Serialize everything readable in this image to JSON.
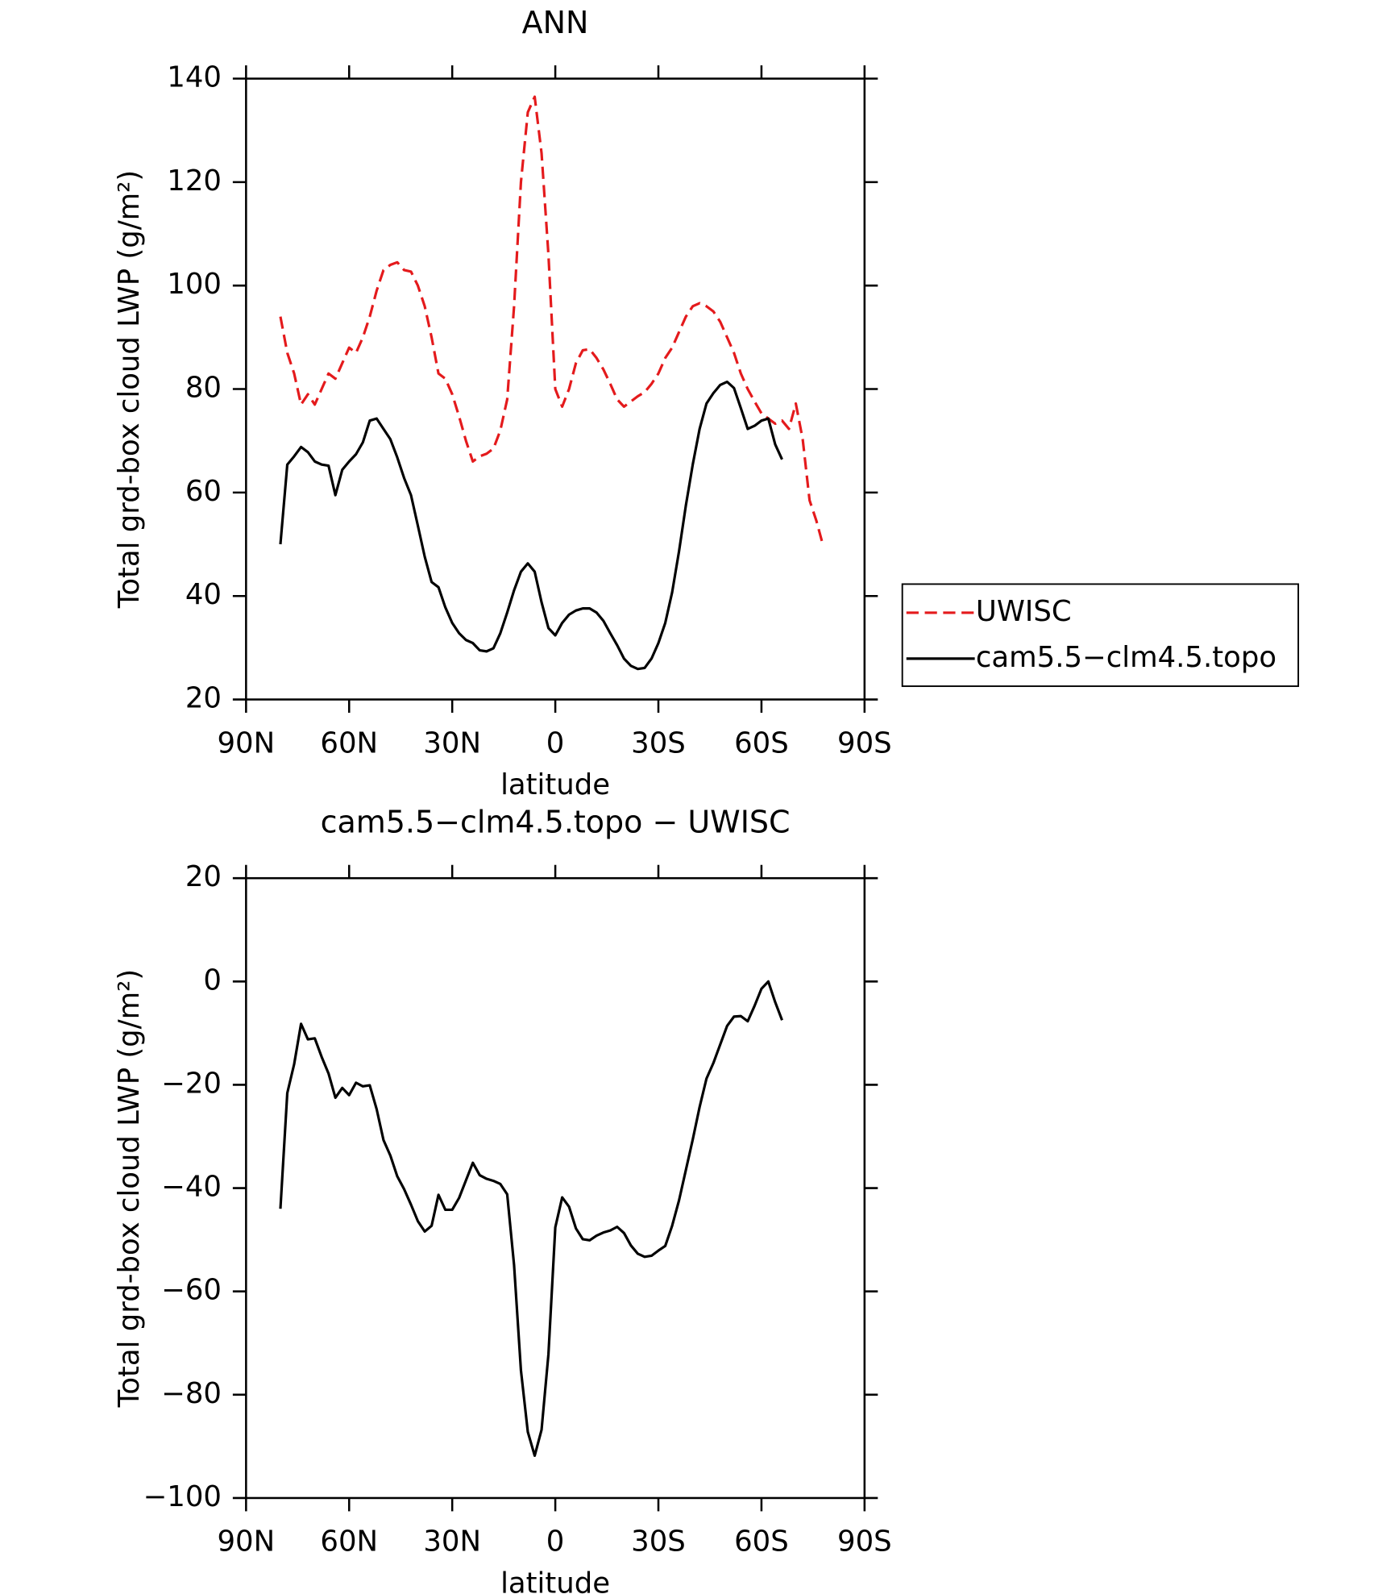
{
  "chart_data": [
    {
      "type": "line",
      "title": "ANN",
      "xlabel": "latitude",
      "ylabel": "Total grd-box cloud LWP (g/m²)",
      "x": [
        80,
        78,
        76,
        74,
        72,
        70,
        68,
        66,
        64,
        62,
        60,
        58,
        56,
        54,
        52,
        50,
        48,
        46,
        44,
        42,
        40,
        38,
        36,
        34,
        32,
        30,
        28,
        26,
        24,
        22,
        20,
        18,
        16,
        14,
        12,
        10,
        8,
        6,
        4,
        2,
        0,
        -2,
        -4,
        -6,
        -8,
        -10,
        -12,
        -14,
        -16,
        -18,
        -20,
        -22,
        -24,
        -26,
        -28,
        -30,
        -32,
        -34,
        -36,
        -38,
        -40,
        -42,
        -44,
        -46,
        -48,
        -50,
        -52,
        -54,
        -56,
        -58,
        -60,
        -62,
        -64,
        -66,
        -68,
        -70,
        -72,
        -74,
        -76,
        -78
      ],
      "series": [
        {
          "name": "UWISC",
          "color": "#e41a1c",
          "dash": true,
          "values": [
            94,
            87,
            83,
            77,
            79,
            77,
            80,
            83,
            82,
            85,
            88,
            87,
            90,
            94,
            99,
            103,
            104,
            104.5,
            103,
            102.7,
            100,
            96,
            90,
            83,
            82,
            79,
            74.7,
            70,
            66,
            67,
            67.5,
            68.5,
            72,
            78,
            96,
            120,
            133.5,
            136.5,
            125.6,
            106,
            80,
            76.6,
            80,
            85,
            87.5,
            87.7,
            86,
            83.8,
            81,
            78,
            76.6,
            77.6,
            78.6,
            79.4,
            81,
            83,
            86,
            88,
            91,
            94,
            96,
            96.6,
            96,
            95,
            93,
            90,
            87,
            83,
            80,
            77.6,
            75.3,
            74.3,
            73.3,
            73.9,
            72.3,
            77.2,
            70.3,
            58.5,
            54.5,
            49.6
          ]
        },
        {
          "name": "cam5.5−clm4.5.topo",
          "color": "#000000",
          "dash": false,
          "values": [
            50,
            65.4,
            67,
            68.8,
            67.8,
            66,
            65.4,
            65.2,
            59.5,
            64.4,
            66,
            67.4,
            69.7,
            73.9,
            74.3,
            72.3,
            70.3,
            66.8,
            62.8,
            59.5,
            53.6,
            47.6,
            42.7,
            41.7,
            37.8,
            34.8,
            32.8,
            31.5,
            30.9,
            29.5,
            29.3,
            29.9,
            32.8,
            36.8,
            41.1,
            44.7,
            46.3,
            44.7,
            38.8,
            33.8,
            32.4,
            34.8,
            36.4,
            37.2,
            37.6,
            37.6,
            36.8,
            35.2,
            32.8,
            30.5,
            27.9,
            26.5,
            25.9,
            26.1,
            27.9,
            30.9,
            34.8,
            40.7,
            48.6,
            57.5,
            65.4,
            72.3,
            77.2,
            79.2,
            80.8,
            81.4,
            80.2,
            76.3,
            72.3,
            72.9,
            73.9,
            74.3,
            69.3,
            66.4,
            null,
            null,
            null,
            null,
            null,
            null
          ]
        }
      ],
      "xlim": [
        90,
        -90
      ],
      "xticks": [
        {
          "value": 90,
          "label": "90N"
        },
        {
          "value": 60,
          "label": "60N"
        },
        {
          "value": 30,
          "label": "30N"
        },
        0,
        {
          "value": -30,
          "label": "30S"
        },
        {
          "value": -60,
          "label": "60S"
        },
        {
          "value": -90,
          "label": "90S"
        }
      ],
      "ylim": [
        20,
        140
      ],
      "yticks": [
        20,
        40,
        60,
        80,
        100,
        120,
        140
      ],
      "legend": "right"
    },
    {
      "type": "line",
      "title": "cam5.5−clm4.5.topo − UWISC",
      "xlabel": "latitude",
      "ylabel": "Total grd-box cloud LWP (g/m²)",
      "x": [
        80,
        78,
        76,
        74,
        72,
        70,
        68,
        66,
        64,
        62,
        60,
        58,
        56,
        54,
        52,
        50,
        48,
        46,
        44,
        42,
        40,
        38,
        36,
        34,
        32,
        30,
        28,
        26,
        24,
        22,
        20,
        18,
        16,
        14,
        12,
        10,
        8,
        6,
        4,
        2,
        0,
        -2,
        -4,
        -6,
        -8,
        -10,
        -12,
        -14,
        -16,
        -18,
        -20,
        -22,
        -24,
        -26,
        -28,
        -30,
        -32,
        -34,
        -36,
        -38,
        -40,
        -42,
        -44,
        -46,
        -48,
        -50,
        -52,
        -54,
        -56,
        -58,
        -60,
        -62,
        -64,
        -66,
        -68,
        -70,
        -72,
        -74,
        -76,
        -78
      ],
      "color": "#000000",
      "values": [
        -44,
        -21.6,
        -16,
        -8.2,
        -11.2,
        -11,
        -14.6,
        -17.8,
        -22.5,
        -20.6,
        -22,
        -19.6,
        -20.3,
        -20.1,
        -24.7,
        -30.7,
        -33.7,
        -37.7,
        -40.2,
        -43.2,
        -46.4,
        -48.4,
        -47.3,
        -41.3,
        -44.2,
        -44.2,
        -41.9,
        -38.5,
        -35.1,
        -37.5,
        -38.2,
        -38.6,
        -39.2,
        -41.2,
        -54.9,
        -75.3,
        -87.2,
        -91.8,
        -86.8,
        -72.2,
        -47.6,
        -41.8,
        -43.6,
        -47.8,
        -49.9,
        -50.1,
        -49.2,
        -48.6,
        -48.2,
        -47.5,
        -48.7,
        -51.1,
        -52.7,
        -53.3,
        -53.1,
        -52.1,
        -51.2,
        -47.3,
        -42.4,
        -36.5,
        -30.6,
        -24.3,
        -18.8,
        -15.8,
        -12.2,
        -8.6,
        -6.8,
        -6.7,
        -7.7,
        -4.7,
        -1.4,
        0,
        -4,
        -7.5,
        null,
        null,
        null,
        null,
        null,
        null
      ],
      "xlim": [
        90,
        -90
      ],
      "xticks": [
        {
          "value": 90,
          "label": "90N"
        },
        {
          "value": 60,
          "label": "60N"
        },
        {
          "value": 30,
          "label": "30N"
        },
        0,
        {
          "value": -30,
          "label": "30S"
        },
        {
          "value": -60,
          "label": "60S"
        },
        {
          "value": -90,
          "label": "90S"
        }
      ],
      "ylim": [
        -100,
        20
      ],
      "yticks": [
        {
          "value": -100,
          "label": "−100"
        },
        {
          "value": -80,
          "label": "−80"
        },
        {
          "value": -60,
          "label": "−60"
        },
        {
          "value": -40,
          "label": "−40"
        },
        {
          "value": -20,
          "label": "−20"
        },
        0,
        20
      ]
    }
  ]
}
